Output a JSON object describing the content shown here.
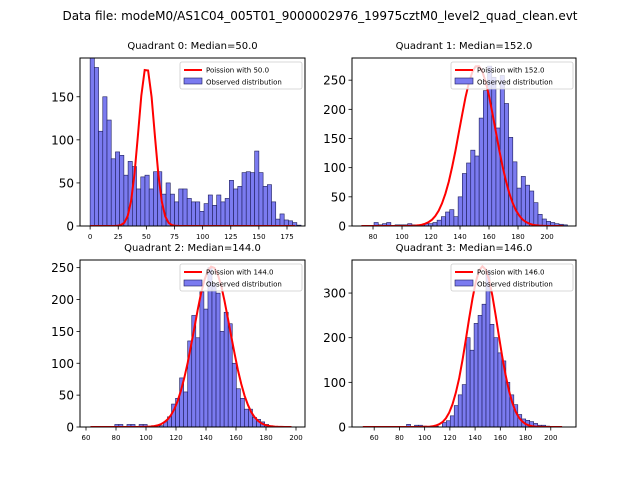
{
  "suptitle": "Data file: modeM0/AS1C04_005T01_9000002976_19975cztM0_level2_quad_clean.evt",
  "colors": {
    "bar_fill": "#7b7bf0",
    "bar_edge": "#1c1c5a",
    "curve": "#ff0000"
  },
  "chart_data": [
    {
      "type": "bar",
      "title": "Quadrant 0: Median=50.0",
      "legend": [
        "Poission with 50.0",
        "Observed distribution"
      ],
      "legend_position": "top-right",
      "xlim": [
        -9,
        191
      ],
      "ylim": [
        0,
        195
      ],
      "xticks": [
        0,
        25,
        50,
        75,
        100,
        125,
        150,
        175
      ],
      "yticks": [
        0,
        50,
        100,
        150
      ],
      "bin_start": 0,
      "bin_width": 3.75,
      "values": [
        195,
        184,
        110,
        150,
        123,
        78,
        86,
        82,
        59,
        75,
        69,
        43,
        57,
        59,
        43,
        63,
        63,
        37,
        50,
        37,
        28,
        43,
        43,
        32,
        28,
        28,
        17,
        26,
        36,
        24,
        36,
        28,
        32,
        53,
        43,
        46,
        62,
        63,
        62,
        87,
        62,
        46,
        48,
        28,
        8,
        14,
        7,
        6,
        4,
        1
      ],
      "poisson_mean": 50,
      "poisson_peak": 185,
      "poisson_range": [
        0,
        182
      ]
    },
    {
      "type": "bar",
      "title": "Quadrant 1: Median=152.0",
      "legend": [
        "Poission with 152.0",
        "Observed distribution"
      ],
      "legend_position": "top-right",
      "xlim": [
        65.5,
        220
      ],
      "ylim": [
        0,
        288
      ],
      "xticks": [
        80,
        100,
        120,
        140,
        160,
        180,
        200
      ],
      "yticks": [
        0,
        50,
        100,
        150,
        200,
        250
      ],
      "bin_start": 72,
      "bin_width": 2.9,
      "values": [
        0,
        0,
        0,
        6,
        2,
        4,
        6,
        0,
        2,
        2,
        2,
        4,
        2,
        2,
        2,
        4,
        4,
        6,
        10,
        16,
        24,
        28,
        16,
        50,
        90,
        108,
        130,
        120,
        185,
        232,
        274,
        255,
        168,
        258,
        210,
        152,
        110,
        65,
        85,
        70,
        60,
        40,
        20,
        12,
        8,
        6,
        4,
        3,
        2,
        0
      ],
      "poisson_mean": 152,
      "poisson_peak": 275,
      "poisson_range": [
        72,
        211
      ]
    },
    {
      "type": "bar",
      "title": "Quadrant 2: Median=144.0",
      "legend": [
        "Poission with 144.0",
        "Observed distribution"
      ],
      "legend_position": "top-right",
      "xlim": [
        56,
        206
      ],
      "ylim": [
        0,
        262
      ],
      "xticks": [
        60,
        80,
        100,
        120,
        140,
        160,
        180,
        200
      ],
      "yticks": [
        0,
        50,
        100,
        150,
        200,
        250
      ],
      "bin_start": 63,
      "bin_width": 2.7,
      "values": [
        0,
        0,
        0,
        0,
        0,
        0,
        4,
        4,
        0,
        4,
        4,
        0,
        4,
        4,
        0,
        2,
        2,
        2,
        8,
        16,
        36,
        45,
        77,
        55,
        135,
        175,
        140,
        212,
        185,
        250,
        225,
        210,
        150,
        180,
        162,
        100,
        60,
        45,
        28,
        28,
        15,
        12,
        8,
        4,
        2,
        1,
        0,
        0,
        0,
        0
      ],
      "poisson_mean": 144,
      "poisson_peak": 252,
      "poisson_range": [
        63,
        197
      ]
    },
    {
      "type": "bar",
      "title": "Quadrant 3: Median=146.0",
      "legend": [
        "Poission with 146.0",
        "Observed distribution"
      ],
      "legend_position": "top-right",
      "xlim": [
        42.4,
        220
      ],
      "ylim": [
        0,
        374
      ],
      "xticks": [
        60,
        80,
        100,
        120,
        140,
        160,
        180,
        200
      ],
      "yticks": [
        0,
        100,
        200,
        300
      ],
      "bin_start": 51,
      "bin_width": 3.15,
      "values": [
        0,
        0,
        0,
        0,
        0,
        0,
        0,
        0,
        0,
        0,
        0,
        6,
        0,
        4,
        4,
        2,
        0,
        2,
        2,
        0,
        10,
        14,
        25,
        48,
        72,
        95,
        200,
        172,
        232,
        250,
        275,
        350,
        230,
        200,
        166,
        148,
        100,
        72,
        50,
        28,
        18,
        15,
        12,
        8,
        4,
        4,
        2,
        0,
        0,
        0
      ],
      "poisson_mean": 146,
      "poisson_peak": 360,
      "poisson_range": [
        51,
        209
      ]
    }
  ]
}
